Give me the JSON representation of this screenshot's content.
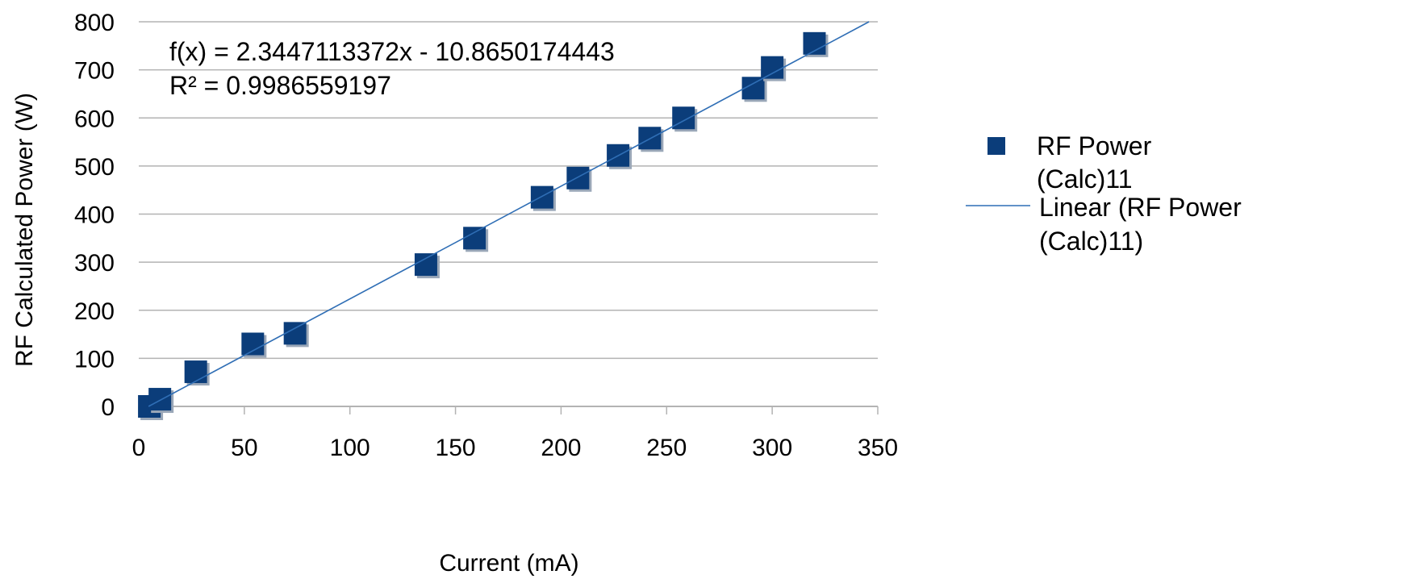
{
  "chart_data": {
    "type": "scatter",
    "xlabel": "Current (mA)",
    "ylabel": "RF Calculated Power (W)",
    "xlim": [
      0,
      350
    ],
    "ylim": [
      0,
      800
    ],
    "x_ticks": [
      "0",
      "50",
      "100",
      "150",
      "200",
      "250",
      "300",
      "350"
    ],
    "y_ticks": [
      "0",
      "100",
      "200",
      "300",
      "400",
      "500",
      "600",
      "700",
      "800"
    ],
    "grid": "horizontal",
    "legend_position": "right",
    "series": [
      {
        "name": "RF Power (Calc)11",
        "legend_lines": [
          "RF Power",
          "(Calc)11"
        ],
        "marker": "square",
        "color": "#0b3d7a",
        "x": [
          5,
          10,
          27,
          54,
          74,
          136,
          159,
          191,
          208,
          227,
          242,
          258,
          291,
          300,
          320
        ],
        "y": [
          0,
          15,
          72,
          130,
          152,
          295,
          350,
          435,
          475,
          522,
          558,
          600,
          662,
          705,
          755
        ]
      }
    ],
    "trendline": {
      "name": "Linear (RF Power (Calc)11)",
      "legend_lines": [
        "Linear (RF Power",
        "(Calc)11)"
      ],
      "type": "linear",
      "slope": 2.3447113372,
      "intercept": -10.8650174443,
      "color": "#2f6eb5",
      "equation_text": "f(x) = 2.3447113372x - 10.8650174443",
      "r2_text": "R² = 0.9986559197"
    }
  }
}
